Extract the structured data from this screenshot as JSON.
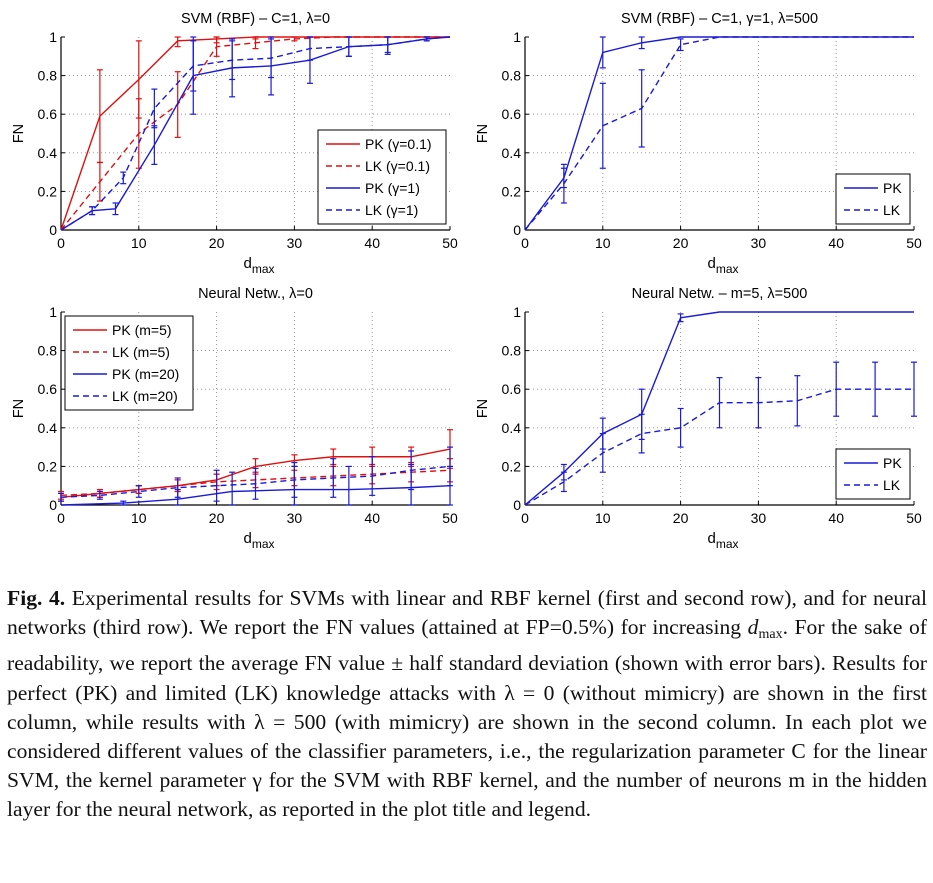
{
  "figure_caption": {
    "label": "Fig. 4.",
    "text_1": "Experimental results for SVMs with linear and RBF kernel (first and second row), and for neural networks (third row). We report the FN values (attained at FP=0.5%) for increasing ",
    "dmax_base": "d",
    "dmax_sub": "max",
    "text_2": ". For the sake of readability, we report the average FN value ± half standard deviation (shown with error bars). Results for perfect (PK) and limited (LK) knowledge attacks with λ = 0 (without mimicry) are shown in the first column, while results with λ = 500 (with mimicry) are shown in the second column. In each plot we considered different values of the classifier parameters, i.e., the regularization parameter C for the linear SVM, the kernel parameter γ for the SVM with RBF kernel, and the number of neurons m in the hidden layer for the neural network, as reported in the plot title and legend."
  },
  "colors": {
    "red": "#e01010",
    "blue": "#1a1ad8",
    "axis": "#000000",
    "grid": "#8a8a8a"
  },
  "chart_data": [
    {
      "type": "line",
      "title": "SVM (RBF) – C=1, λ=0",
      "ylabel": "FN",
      "xlabel": "d",
      "xlabel_sub": "max",
      "xlim": [
        0,
        50
      ],
      "ylim": [
        0,
        1
      ],
      "x_ticks": [
        "0",
        "10",
        "20",
        "30",
        "40",
        "50"
      ],
      "y_ticks": [
        "0",
        "0.2",
        "0.4",
        "0.6",
        "0.8",
        "1"
      ],
      "grid": true,
      "legend_position": "bottom-right",
      "series": [
        {
          "name": "PK (γ=0.1)",
          "color": "red",
          "dash": false,
          "x": [
            0,
            5,
            10,
            15,
            20,
            25,
            30,
            35,
            40,
            45,
            50
          ],
          "y": [
            0,
            0.59,
            0.78,
            0.98,
            0.99,
            1,
            1,
            1,
            1,
            1,
            1
          ],
          "err": [
            0,
            0.24,
            0.2,
            0.03,
            0.02,
            0.01,
            0,
            0,
            0,
            0,
            0
          ]
        },
        {
          "name": "LK (γ=0.1)",
          "color": "red",
          "dash": true,
          "x": [
            0,
            5,
            10,
            15,
            20,
            25,
            30,
            35,
            40,
            45,
            50
          ],
          "y": [
            0,
            0.25,
            0.5,
            0.65,
            0.95,
            0.97,
            0.99,
            1,
            1,
            1,
            1
          ],
          "err": [
            0,
            0.1,
            0.18,
            0.17,
            0.05,
            0.03,
            0.01,
            0,
            0,
            0,
            0
          ]
        },
        {
          "name": "PK (γ=1)",
          "color": "blue",
          "dash": false,
          "x": [
            0,
            4,
            7,
            12,
            17,
            22,
            27,
            32,
            37,
            42,
            47,
            50
          ],
          "y": [
            0,
            0.1,
            0.11,
            0.44,
            0.8,
            0.84,
            0.85,
            0.88,
            0.95,
            0.96,
            0.99,
            1
          ],
          "err": [
            0,
            0.02,
            0.03,
            0.1,
            0.2,
            0.15,
            0.15,
            0.12,
            0.05,
            0.05,
            0.01,
            0
          ]
        },
        {
          "name": "LK (γ=1)",
          "color": "blue",
          "dash": true,
          "x": [
            0,
            4,
            8,
            12,
            17,
            22,
            27,
            32,
            37,
            42,
            47,
            50
          ],
          "y": [
            0,
            0.1,
            0.27,
            0.63,
            0.85,
            0.88,
            0.89,
            0.94,
            0.95,
            0.96,
            0.99,
            1
          ],
          "err": [
            0,
            0.02,
            0.03,
            0.1,
            0.13,
            0.1,
            0.1,
            0.06,
            0.05,
            0.04,
            0.01,
            0
          ]
        }
      ]
    },
    {
      "type": "line",
      "title": "SVM (RBF) – C=1, γ=1, λ=500",
      "ylabel": "FN",
      "xlabel": "d",
      "xlabel_sub": "max",
      "xlim": [
        0,
        50
      ],
      "ylim": [
        0,
        1
      ],
      "x_ticks": [
        "0",
        "10",
        "20",
        "30",
        "40",
        "50"
      ],
      "y_ticks": [
        "0",
        "0.2",
        "0.4",
        "0.6",
        "0.8",
        "1"
      ],
      "grid": true,
      "legend_position": "bottom-right",
      "series": [
        {
          "name": "PK",
          "color": "blue",
          "dash": false,
          "x": [
            0,
            5,
            10,
            15,
            20,
            25,
            30,
            35,
            40,
            45,
            50
          ],
          "y": [
            0,
            0.27,
            0.92,
            0.97,
            1,
            1,
            1,
            1,
            1,
            1,
            1
          ],
          "err": [
            0,
            0.05,
            0.08,
            0.03,
            0,
            0,
            0,
            0,
            0,
            0,
            0
          ]
        },
        {
          "name": "LK",
          "color": "blue",
          "dash": true,
          "x": [
            0,
            5,
            10,
            15,
            20,
            25,
            30,
            35,
            40,
            45,
            50
          ],
          "y": [
            0,
            0.24,
            0.54,
            0.63,
            0.96,
            1,
            1,
            1,
            1,
            1,
            1
          ],
          "err": [
            0,
            0.1,
            0.22,
            0.2,
            0.03,
            0,
            0,
            0,
            0,
            0,
            0
          ]
        }
      ]
    },
    {
      "type": "line",
      "title": "Neural Netw., λ=0",
      "ylabel": "FN",
      "xlabel": "d",
      "xlabel_sub": "max",
      "xlim": [
        0,
        50
      ],
      "ylim": [
        0,
        1
      ],
      "x_ticks": [
        "0",
        "10",
        "20",
        "30",
        "40",
        "50"
      ],
      "y_ticks": [
        "0",
        "0.2",
        "0.4",
        "0.6",
        "0.8",
        "1"
      ],
      "grid": true,
      "legend_position": "top-left",
      "series": [
        {
          "name": "PK (m=5)",
          "color": "red",
          "dash": false,
          "x": [
            0,
            5,
            10,
            15,
            20,
            25,
            30,
            35,
            40,
            45,
            50
          ],
          "y": [
            0.04,
            0.06,
            0.08,
            0.1,
            0.13,
            0.2,
            0.23,
            0.25,
            0.25,
            0.25,
            0.29
          ],
          "err": [
            0.02,
            0.02,
            0.02,
            0.03,
            0.03,
            0.04,
            0.03,
            0.04,
            0.05,
            0.05,
            0.1
          ]
        },
        {
          "name": "LK (m=5)",
          "color": "red",
          "dash": true,
          "x": [
            0,
            5,
            10,
            15,
            20,
            25,
            30,
            35,
            40,
            45,
            50
          ],
          "y": [
            0.05,
            0.06,
            0.08,
            0.1,
            0.12,
            0.13,
            0.14,
            0.15,
            0.16,
            0.17,
            0.18
          ],
          "err": [
            0.02,
            0.02,
            0.02,
            0.03,
            0.04,
            0.04,
            0.04,
            0.05,
            0.05,
            0.05,
            0.06
          ]
        },
        {
          "name": "PK (m=20)",
          "color": "blue",
          "dash": false,
          "x": [
            0,
            8,
            15,
            22,
            30,
            37,
            45,
            50
          ],
          "y": [
            0,
            0.01,
            0.03,
            0.07,
            0.08,
            0.08,
            0.09,
            0.1
          ],
          "err": [
            0,
            0.01,
            0.05,
            0.1,
            0.12,
            0.12,
            0.12,
            0.1
          ]
        },
        {
          "name": "LK (m=20)",
          "color": "blue",
          "dash": true,
          "x": [
            0,
            5,
            10,
            15,
            20,
            25,
            30,
            35,
            40,
            45,
            50
          ],
          "y": [
            0.04,
            0.05,
            0.07,
            0.09,
            0.1,
            0.11,
            0.13,
            0.14,
            0.15,
            0.18,
            0.2
          ],
          "err": [
            0.02,
            0.02,
            0.03,
            0.05,
            0.08,
            0.08,
            0.09,
            0.1,
            0.1,
            0.1,
            0.1
          ]
        }
      ]
    },
    {
      "type": "line",
      "title": "Neural Netw. – m=5, λ=500",
      "ylabel": "FN",
      "xlabel": "d",
      "xlabel_sub": "max",
      "xlim": [
        0,
        50
      ],
      "ylim": [
        0,
        1
      ],
      "x_ticks": [
        "0",
        "10",
        "20",
        "30",
        "40",
        "50"
      ],
      "y_ticks": [
        "0",
        "0.2",
        "0.4",
        "0.6",
        "0.8",
        "1"
      ],
      "grid": true,
      "legend_position": "bottom-right",
      "series": [
        {
          "name": "PK",
          "color": "blue",
          "dash": false,
          "x": [
            0,
            5,
            10,
            15,
            20,
            25,
            30,
            35,
            40,
            45,
            50
          ],
          "y": [
            0,
            0.17,
            0.37,
            0.47,
            0.97,
            1,
            1,
            1,
            1,
            1,
            1
          ],
          "err": [
            0,
            0.04,
            0.08,
            0.13,
            0.02,
            0,
            0,
            0,
            0,
            0,
            0
          ]
        },
        {
          "name": "LK",
          "color": "blue",
          "dash": true,
          "x": [
            0,
            5,
            10,
            15,
            20,
            25,
            30,
            35,
            40,
            45,
            50
          ],
          "y": [
            0,
            0.12,
            0.27,
            0.37,
            0.4,
            0.53,
            0.53,
            0.54,
            0.6,
            0.6,
            0.6
          ],
          "err": [
            0,
            0.05,
            0.1,
            0.1,
            0.1,
            0.13,
            0.13,
            0.13,
            0.14,
            0.14,
            0.14
          ]
        }
      ]
    }
  ]
}
